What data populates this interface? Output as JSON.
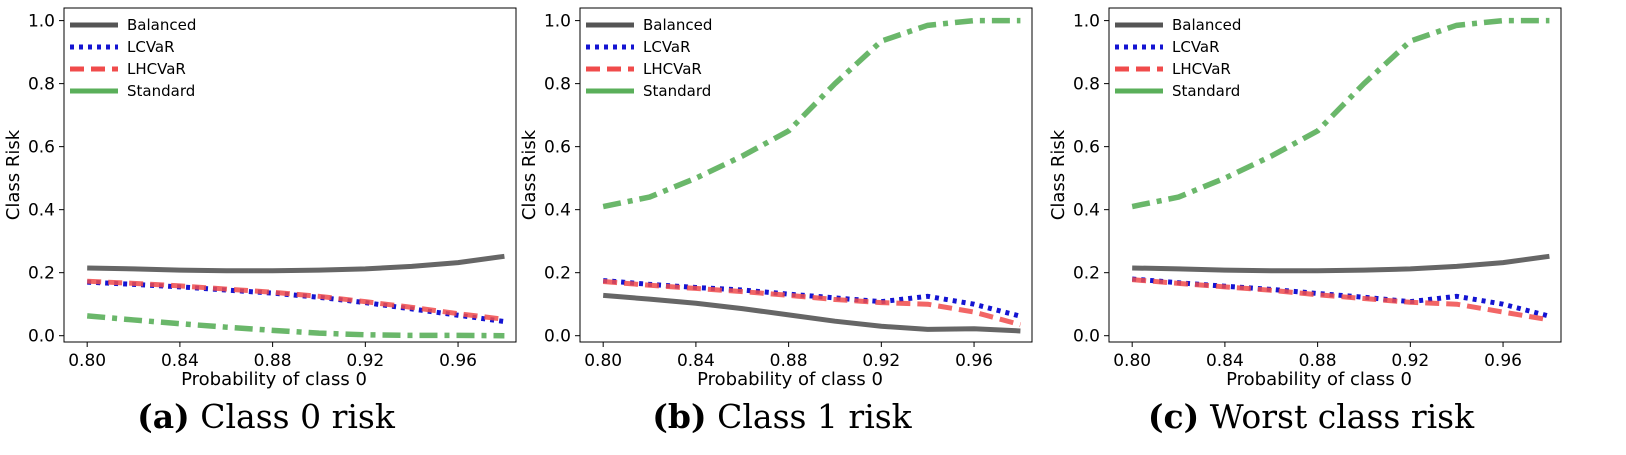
{
  "colors": {
    "Balanced": "#555555",
    "LCVaR": "#1414d2",
    "LHCVaR": "#f04b4b",
    "Standard": "#5aaf5a"
  },
  "chart_data": [
    {
      "type": "line",
      "caption_letter": "(a)",
      "caption_title": "Class 0 risk",
      "xlabel": "Probability of class 0",
      "ylabel": "Class Risk",
      "xlim": [
        0.79,
        0.985
      ],
      "ylim": [
        -0.02,
        1.04
      ],
      "xticks": [
        0.8,
        0.84,
        0.88,
        0.92,
        0.96
      ],
      "xtick_labels": [
        "0.80",
        "0.84",
        "0.88",
        "0.92",
        "0.96"
      ],
      "yticks": [
        0.0,
        0.2,
        0.4,
        0.6,
        0.8,
        1.0
      ],
      "ytick_labels": [
        "0.0",
        "0.2",
        "0.4",
        "0.6",
        "0.8",
        "1.0"
      ],
      "legend": "top-left",
      "x": [
        0.8,
        0.82,
        0.84,
        0.86,
        0.88,
        0.9,
        0.92,
        0.94,
        0.96,
        0.98
      ],
      "series": [
        {
          "name": "Balanced",
          "values": [
            0.215,
            0.212,
            0.208,
            0.206,
            0.206,
            0.208,
            0.212,
            0.22,
            0.232,
            0.252
          ]
        },
        {
          "name": "LCVaR",
          "values": [
            0.17,
            0.163,
            0.155,
            0.145,
            0.135,
            0.122,
            0.105,
            0.085,
            0.065,
            0.045
          ]
        },
        {
          "name": "LHCVaR",
          "values": [
            0.173,
            0.166,
            0.158,
            0.148,
            0.138,
            0.125,
            0.108,
            0.09,
            0.07,
            0.052
          ]
        },
        {
          "name": "Standard",
          "values": [
            0.063,
            0.05,
            0.038,
            0.027,
            0.017,
            0.008,
            0.003,
            0.001,
            0.001,
            0.0
          ]
        }
      ]
    },
    {
      "type": "line",
      "caption_letter": "(b)",
      "caption_title": "Class 1 risk",
      "xlabel": "Probability of class 0",
      "ylabel": "Class Risk",
      "xlim": [
        0.79,
        0.985
      ],
      "ylim": [
        -0.02,
        1.04
      ],
      "xticks": [
        0.8,
        0.84,
        0.88,
        0.92,
        0.96
      ],
      "xtick_labels": [
        "0.80",
        "0.84",
        "0.88",
        "0.92",
        "0.96"
      ],
      "yticks": [
        0.0,
        0.2,
        0.4,
        0.6,
        0.8,
        1.0
      ],
      "ytick_labels": [
        "0.0",
        "0.2",
        "0.4",
        "0.6",
        "0.8",
        "1.0"
      ],
      "legend": "top-left",
      "x": [
        0.8,
        0.82,
        0.84,
        0.86,
        0.88,
        0.9,
        0.92,
        0.94,
        0.96,
        0.98
      ],
      "series": [
        {
          "name": "Balanced",
          "values": [
            0.128,
            0.116,
            0.103,
            0.086,
            0.066,
            0.046,
            0.03,
            0.02,
            0.022,
            0.015
          ]
        },
        {
          "name": "LCVaR",
          "values": [
            0.175,
            0.163,
            0.153,
            0.145,
            0.132,
            0.12,
            0.108,
            0.125,
            0.1,
            0.062
          ]
        },
        {
          "name": "LHCVaR",
          "values": [
            0.172,
            0.16,
            0.15,
            0.14,
            0.128,
            0.115,
            0.105,
            0.1,
            0.075,
            0.035
          ]
        },
        {
          "name": "Standard",
          "values": [
            0.41,
            0.44,
            0.5,
            0.57,
            0.65,
            0.8,
            0.935,
            0.985,
            1.0,
            1.0
          ]
        }
      ]
    },
    {
      "type": "line",
      "caption_letter": "(c)",
      "caption_title": "Worst class risk",
      "xlabel": "Probability of class 0",
      "ylabel": "Class Risk",
      "xlim": [
        0.79,
        0.985
      ],
      "ylim": [
        -0.02,
        1.04
      ],
      "xticks": [
        0.8,
        0.84,
        0.88,
        0.92,
        0.96
      ],
      "xtick_labels": [
        "0.80",
        "0.84",
        "0.88",
        "0.92",
        "0.96"
      ],
      "yticks": [
        0.0,
        0.2,
        0.4,
        0.6,
        0.8,
        1.0
      ],
      "ytick_labels": [
        "0.0",
        "0.2",
        "0.4",
        "0.6",
        "0.8",
        "1.0"
      ],
      "legend": "top-left",
      "x": [
        0.8,
        0.82,
        0.84,
        0.86,
        0.88,
        0.9,
        0.92,
        0.94,
        0.96,
        0.98
      ],
      "series": [
        {
          "name": "Balanced",
          "values": [
            0.215,
            0.212,
            0.208,
            0.206,
            0.206,
            0.208,
            0.212,
            0.22,
            0.232,
            0.252
          ]
        },
        {
          "name": "LCVaR",
          "values": [
            0.18,
            0.168,
            0.157,
            0.147,
            0.134,
            0.122,
            0.108,
            0.125,
            0.1,
            0.062
          ]
        },
        {
          "name": "LHCVaR",
          "values": [
            0.178,
            0.166,
            0.155,
            0.144,
            0.13,
            0.118,
            0.106,
            0.1,
            0.075,
            0.05
          ]
        },
        {
          "name": "Standard",
          "values": [
            0.41,
            0.44,
            0.5,
            0.57,
            0.65,
            0.8,
            0.935,
            0.985,
            1.0,
            1.0
          ]
        }
      ]
    }
  ]
}
